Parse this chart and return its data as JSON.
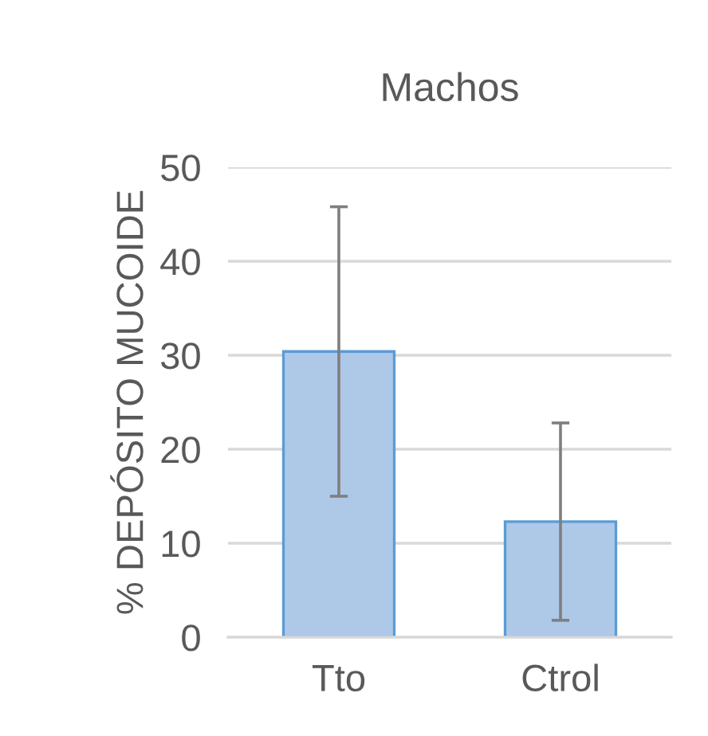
{
  "chart_data": {
    "type": "bar",
    "title": "Machos",
    "ylabel": "% DEPÓSITO MUCOIDE",
    "categories": [
      "Tto",
      "Ctrol"
    ],
    "values": [
      30.4,
      12.3
    ],
    "errors": [
      15.4,
      10.5
    ],
    "color": "#aec8e8",
    "ylim": [
      0,
      50
    ],
    "yticks": [
      0,
      10,
      20,
      30,
      40,
      50
    ],
    "grid": "y"
  }
}
